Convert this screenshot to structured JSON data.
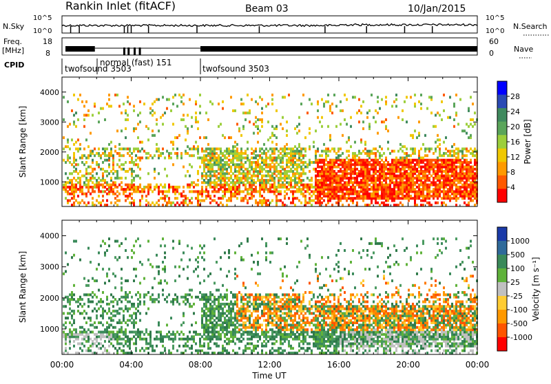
{
  "header": {
    "station": "Rankin Inlet (fitACF)",
    "beam": "Beam 03",
    "date": "10/Jan/2015"
  },
  "status_panels": {
    "nsky_label": "N.Sky",
    "nsearch_label": "N.Search",
    "freq_label": "Freq.",
    "freq_unit": "[MHz]",
    "nave_label": "Nave",
    "cpid_label": "CPID",
    "left_ticks_top": [
      "10^5",
      "10^0"
    ],
    "right_ticks_top": [
      "10^5",
      "10^0"
    ],
    "left_ticks_freq": [
      "18",
      "8"
    ],
    "right_ticks_nave": [
      "60",
      "0"
    ],
    "cpid_segments": [
      {
        "label": "twofsound 3503",
        "start_h": 0
      },
      {
        "label": "normal (fast) 151",
        "start_h": 2
      },
      {
        "label": "twofsound 3503",
        "start_h": 8
      }
    ]
  },
  "chart_data": [
    {
      "type": "heatmap",
      "name": "power",
      "ylabel": "Slant Range [km]",
      "xlabel": "",
      "xlim": [
        0,
        24
      ],
      "ylim": [
        180,
        4500
      ],
      "yticks": [
        1000,
        2000,
        3000,
        4000
      ],
      "colorbar": {
        "label": "Power [dB]",
        "ticks": [
          "4",
          "8",
          "12",
          "16",
          "20",
          "24",
          "28"
        ],
        "colors": [
          "#0000ff",
          "#2a4ab4",
          "#3f8a5e",
          "#5aa55a",
          "#9ccf3c",
          "#f0c800",
          "#ff9a00",
          "#ff5a00",
          "#ff0000"
        ]
      }
    },
    {
      "type": "heatmap",
      "name": "velocity",
      "ylabel": "Slant Range [km]",
      "xlabel": "Time UT",
      "xlim": [
        0,
        24
      ],
      "ylim": [
        180,
        4500
      ],
      "yticks": [
        1000,
        2000,
        3000,
        4000
      ],
      "xticks": [
        "00:00",
        "04:00",
        "08:00",
        "12:00",
        "16:00",
        "20:00",
        "00:00"
      ],
      "colorbar": {
        "label": "Velocity [m s⁻¹]",
        "ticks": [
          "1000",
          "500",
          "100",
          "25",
          "-25",
          "-100",
          "-500",
          "-1000"
        ],
        "colors": [
          "#1a3aa8",
          "#2f6a9a",
          "#3a8a5a",
          "#5fb23a",
          "#c0c0c0",
          "#ffcc33",
          "#ff9900",
          "#ff5500",
          "#ff0000"
        ]
      }
    }
  ]
}
